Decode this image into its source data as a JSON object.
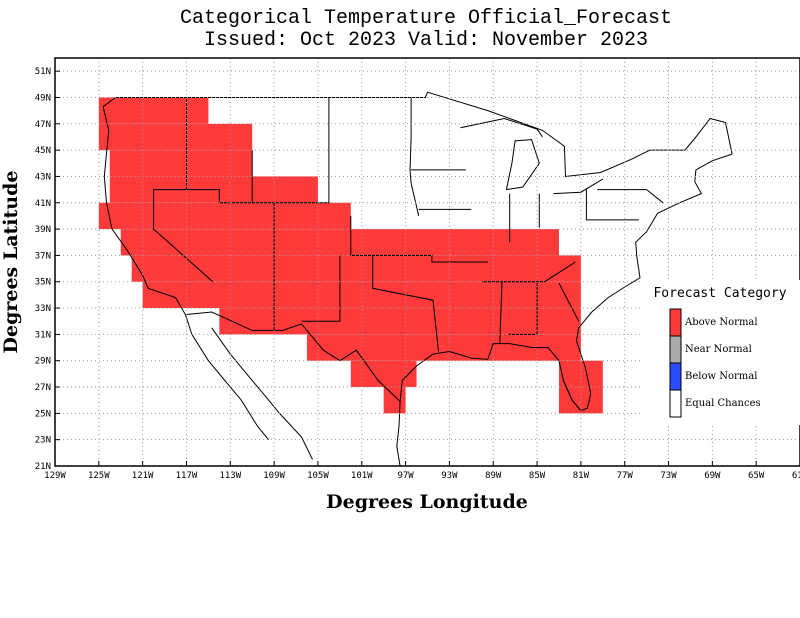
{
  "title_line1": "Categorical Temperature Official_Forecast",
  "title_line2": "Issued: Oct 2023 Valid: November 2023",
  "xlabel": "Degrees Longitude",
  "ylabel": "Degrees Latitude",
  "x_ticks": [
    "129W",
    "125W",
    "121W",
    "117W",
    "113W",
    "109W",
    "105W",
    "101W",
    "97W",
    "93W",
    "89W",
    "85W",
    "81W",
    "77W",
    "73W",
    "69W",
    "65W",
    "61W"
  ],
  "y_ticks": [
    "51N",
    "49N",
    "47N",
    "45N",
    "43N",
    "41N",
    "39N",
    "37N",
    "35N",
    "33N",
    "31N",
    "29N",
    "27N",
    "25N",
    "23N",
    "21N"
  ],
  "legend": {
    "title": "Forecast Category",
    "items": [
      {
        "label": "Above Normal",
        "color": "#ff3a3a"
      },
      {
        "label": "Near Normal",
        "color": "#aaaaaa"
      },
      {
        "label": "Below Normal",
        "color": "#2a4dff"
      },
      {
        "label": "Equal Chances",
        "color": "#ffffff"
      }
    ]
  },
  "colors": {
    "above": "#ff3a3a",
    "grid": "#9a9a9a"
  },
  "chart_data": {
    "type": "map",
    "xlim": [
      -129,
      -61
    ],
    "ylim": [
      21,
      52
    ],
    "grid": true,
    "legend_position": "right",
    "above_normal_cells": [
      {
        "lon": [
          -125,
          -115
        ],
        "lat": [
          47,
          49
        ]
      },
      {
        "lon": [
          -125,
          -111
        ],
        "lat": [
          45,
          47
        ]
      },
      {
        "lon": [
          -124,
          -111
        ],
        "lat": [
          43,
          45
        ]
      },
      {
        "lon": [
          -124,
          -105
        ],
        "lat": [
          41,
          43
        ]
      },
      {
        "lon": [
          -125,
          -102
        ],
        "lat": [
          39,
          41
        ]
      },
      {
        "lon": [
          -123,
          -83
        ],
        "lat": [
          37,
          39
        ]
      },
      {
        "lon": [
          -122,
          -81
        ],
        "lat": [
          35,
          37
        ]
      },
      {
        "lon": [
          -121,
          -81
        ],
        "lat": [
          33,
          35
        ]
      },
      {
        "lon": [
          -114,
          -81
        ],
        "lat": [
          31,
          33
        ]
      },
      {
        "lon": [
          -106,
          -81
        ],
        "lat": [
          29,
          31
        ]
      },
      {
        "lon": [
          -102,
          -96
        ],
        "lat": [
          27,
          29
        ]
      },
      {
        "lon": [
          -83,
          -79
        ],
        "lat": [
          27,
          29
        ]
      },
      {
        "lon": [
          -99,
          -97
        ],
        "lat": [
          25,
          27
        ]
      },
      {
        "lon": [
          -83,
          -79
        ],
        "lat": [
          25,
          27
        ]
      }
    ]
  }
}
